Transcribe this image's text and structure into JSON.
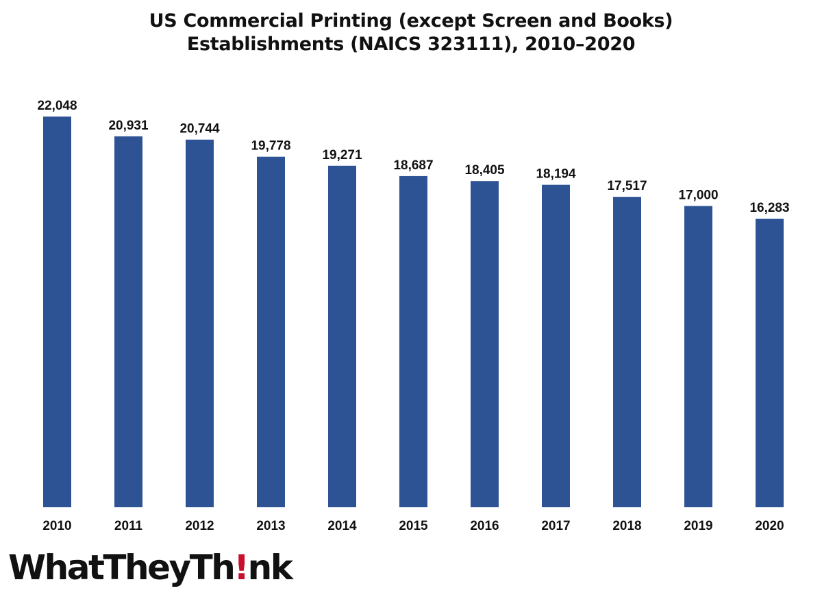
{
  "chart_data": {
    "type": "bar",
    "title_lines": [
      "US Commercial Printing (except Screen and Books)",
      "Establishments (NAICS 323111), 2010–2020"
    ],
    "categories": [
      "2010",
      "2011",
      "2012",
      "2013",
      "2014",
      "2015",
      "2016",
      "2017",
      "2018",
      "2019",
      "2020"
    ],
    "values": [
      22048,
      20931,
      20744,
      19778,
      19271,
      18687,
      18405,
      18194,
      17517,
      17000,
      16283
    ],
    "value_labels": [
      "22,048",
      "20,931",
      "20,744",
      "19,778",
      "19,271",
      "18,687",
      "18,405",
      "18,194",
      "17,517",
      "17,000",
      "16,283"
    ],
    "xlabel": "",
    "ylabel": "",
    "ylim": [
      0,
      22048
    ],
    "grid": false,
    "legend": "none",
    "bar_color": "#2e5395"
  },
  "logo": {
    "text_before": "WhatTheyTh",
    "bang": "!",
    "text_after": "nk",
    "accent_color": "#c8102e"
  }
}
